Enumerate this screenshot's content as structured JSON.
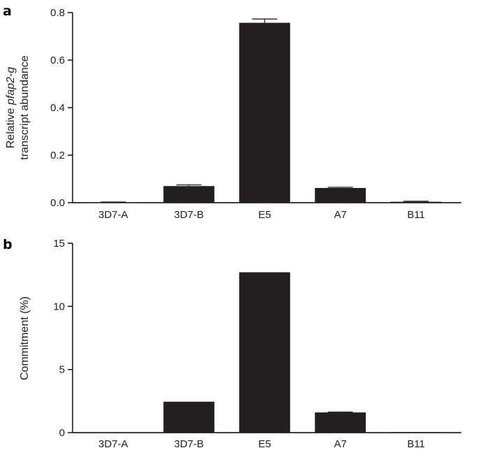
{
  "chart_data": [
    {
      "type": "bar",
      "panel_label": "a",
      "categories": [
        "3D7-A",
        "3D7-B",
        "E5",
        "A7",
        "B11"
      ],
      "values": [
        0.002,
        0.07,
        0.757,
        0.062,
        0.004
      ],
      "errors": [
        0.001,
        0.005,
        0.016,
        0.003,
        0.002
      ],
      "ylabel_parts": [
        {
          "text": "Relative ",
          "italic": false
        },
        {
          "text": "pfap2-g",
          "italic": true
        }
      ],
      "ylabel_line2": "transcript abundance",
      "ylim": [
        0,
        0.8
      ],
      "yticks": [
        0,
        0.2,
        0.4,
        0.6,
        0.8
      ],
      "ytick_labels": [
        "0.0",
        "0.2",
        "0.4",
        "0.6",
        "0.8"
      ],
      "grid": false,
      "bar_color": "#231f20"
    },
    {
      "type": "bar",
      "panel_label": "b",
      "categories": [
        "3D7-A",
        "3D7-B",
        "E5",
        "A7",
        "B11"
      ],
      "values": [
        0,
        2.45,
        12.7,
        1.6,
        0.05
      ],
      "errors": [
        0,
        0,
        0,
        0.03,
        0
      ],
      "ylabel_parts": [
        {
          "text": "Commitment (%)",
          "italic": false
        }
      ],
      "ylabel_line2": "",
      "ylim": [
        0,
        15
      ],
      "yticks": [
        0,
        5,
        10,
        15
      ],
      "ytick_labels": [
        "0",
        "5",
        "10",
        "15"
      ],
      "grid": false,
      "bar_color": "#231f20"
    }
  ]
}
